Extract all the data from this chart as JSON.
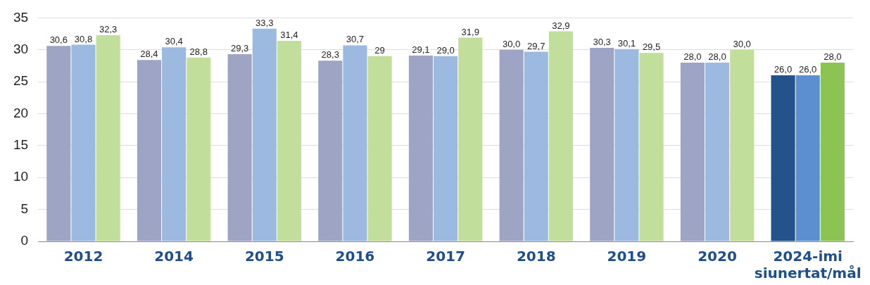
{
  "chart_data": {
    "type": "bar",
    "categories": [
      "2012",
      "2014",
      "2015",
      "2016",
      "2017",
      "2018",
      "2019",
      "2020",
      "2024-imi siunertat/mål"
    ],
    "series": [
      {
        "colors": [
          "#9ea5c4",
          "#9ea5c4",
          "#9ea5c4",
          "#9ea5c4",
          "#9ea5c4",
          "#9ea5c4",
          "#9ea5c4",
          "#9ea5c4",
          "#24528a"
        ],
        "values": [
          30.6,
          28.4,
          29.3,
          28.3,
          29.1,
          30.0,
          30.3,
          28.0,
          26.0
        ],
        "value_labels": [
          "30,6",
          "28,4",
          "29,3",
          "28,3",
          "29,1",
          "30,0",
          "30,3",
          "28,0",
          "26,0"
        ]
      },
      {
        "colors": [
          "#9cb9e0",
          "#9cb9e0",
          "#9cb9e0",
          "#9cb9e0",
          "#9cb9e0",
          "#9cb9e0",
          "#9cb9e0",
          "#9cb9e0",
          "#5b8fcf"
        ],
        "values": [
          30.8,
          30.4,
          33.3,
          30.7,
          29.0,
          29.7,
          30.1,
          28.0,
          26.0
        ],
        "value_labels": [
          "30,8",
          "30,4",
          "33,3",
          "30,7",
          "29,0",
          "29,7",
          "30,1",
          "28,0",
          "26,0"
        ]
      },
      {
        "colors": [
          "#c2de9b",
          "#c2de9b",
          "#c2de9b",
          "#c2de9b",
          "#c2de9b",
          "#c2de9b",
          "#c2de9b",
          "#c2de9b",
          "#8cc454"
        ],
        "values": [
          32.3,
          28.8,
          31.4,
          29,
          31.9,
          32.9,
          29.5,
          30.0,
          28.0
        ],
        "value_labels": [
          "32,3",
          "28,8",
          "31,4",
          "29",
          "31,9",
          "32,9",
          "29,5",
          "30,0",
          "28,0"
        ]
      }
    ],
    "ylim": [
      0,
      35
    ],
    "yticks": [
      0,
      5,
      10,
      15,
      20,
      25,
      30,
      35
    ],
    "grid": "y",
    "legend": false
  }
}
